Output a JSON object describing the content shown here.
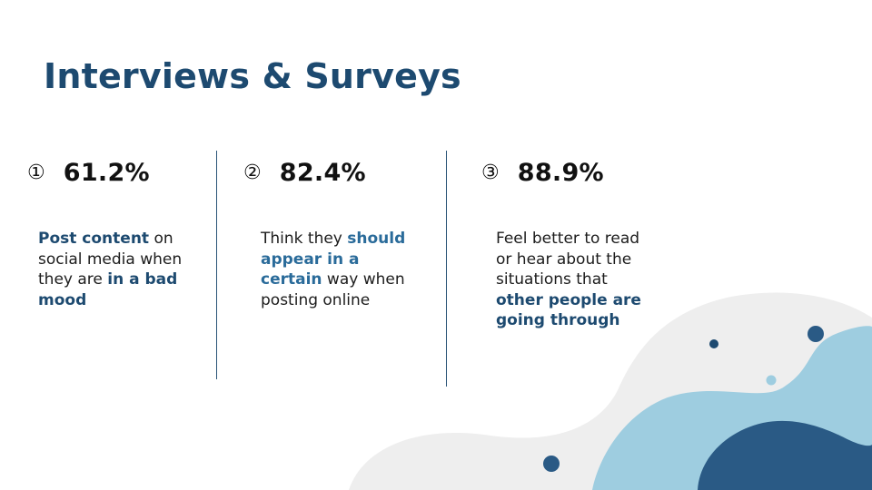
{
  "slide": {
    "title": "Interviews & Surveys"
  },
  "stats": [
    {
      "number": "①",
      "value": "61.2%",
      "desc": {
        "p1_bold": "Post content",
        "p2": " on social media when they are ",
        "p3_bold": "in a bad mood"
      }
    },
    {
      "number": "②",
      "value": "82.4%",
      "desc": {
        "p1": "Think they ",
        "p2_bold": "should appear in a certain",
        "p3": " way when posting online"
      }
    },
    {
      "number": "③",
      "value": "88.9%",
      "desc": {
        "p1": "Feel better to read or hear about the situations that ",
        "p2_bold": "other people are going through"
      }
    }
  ],
  "colors": {
    "title": "#1d4a70",
    "accent_dark": "#2a5a85",
    "accent_light": "#9ecde0",
    "blob_gray": "#eeeeee"
  }
}
